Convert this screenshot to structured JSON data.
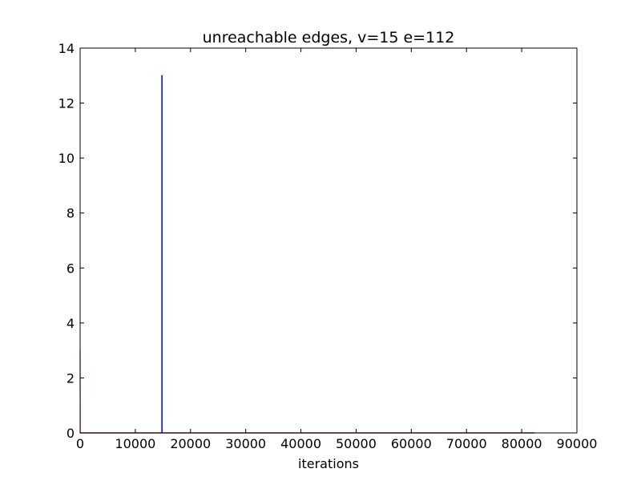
{
  "chart_data": {
    "type": "line",
    "title": "unreachable edges, v=15 e=112",
    "xlabel": "iterations",
    "ylabel": "",
    "xlim": [
      0,
      90000
    ],
    "ylim": [
      0,
      14
    ],
    "xticks": [
      0,
      10000,
      20000,
      30000,
      40000,
      50000,
      60000,
      70000,
      80000,
      90000
    ],
    "yticks": [
      0,
      2,
      4,
      6,
      8,
      10,
      12,
      14
    ],
    "grid": false,
    "legend": "none",
    "series": [
      {
        "color": "#0000ff",
        "points": [
          [
            0,
            0
          ],
          [
            14800,
            0
          ],
          [
            14800,
            13
          ],
          [
            14850,
            13
          ],
          [
            14850,
            0
          ],
          [
            82300,
            0
          ]
        ]
      },
      {
        "color": "#ff0000",
        "points": [
          [
            0,
            3
          ],
          [
            20,
            0
          ],
          [
            82300,
            0
          ]
        ]
      }
    ]
  }
}
